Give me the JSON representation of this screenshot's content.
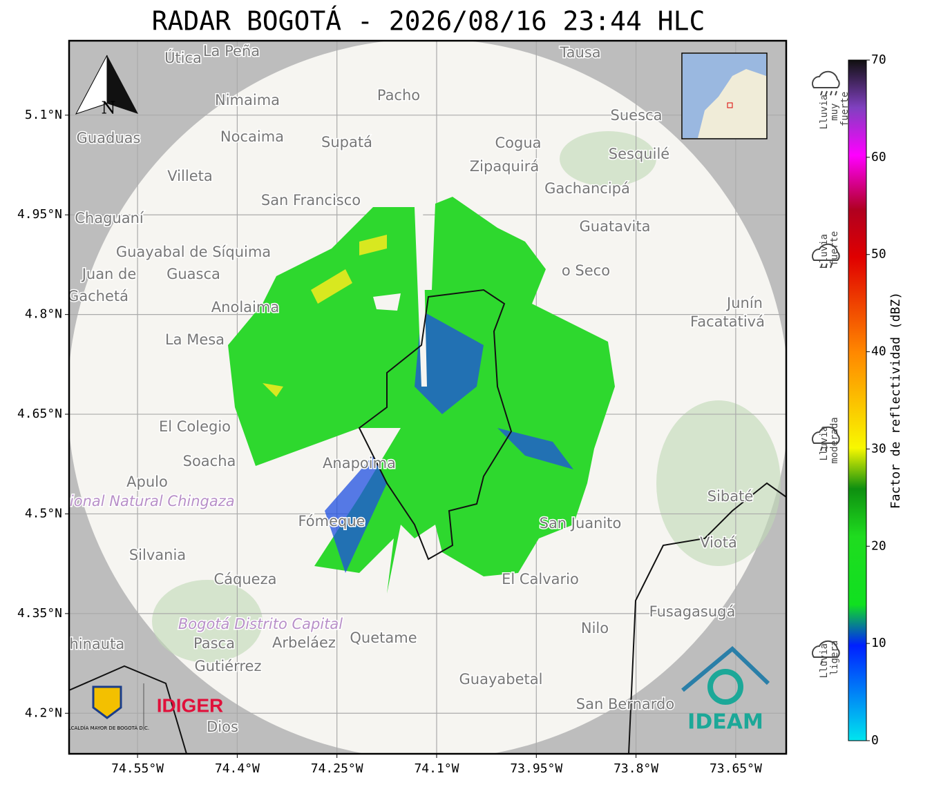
{
  "title": "RADAR BOGOTÁ - 2026/08/16 23:44 HLC",
  "map": {
    "xlim": [
      -74.653,
      -73.574
    ],
    "ylim": [
      4.139,
      5.212
    ],
    "lon_ticks": [
      {
        "value": -74.55,
        "label": "74.55°W"
      },
      {
        "value": -74.4,
        "label": "74.4°W"
      },
      {
        "value": -74.25,
        "label": "74.25°W"
      },
      {
        "value": -74.1,
        "label": "74.1°W"
      },
      {
        "value": -73.95,
        "label": "73.95°W"
      },
      {
        "value": -73.8,
        "label": "73.8°W"
      },
      {
        "value": -73.65,
        "label": "73.65°W"
      }
    ],
    "lat_ticks": [
      {
        "value": 5.1,
        "label": "5.1°N"
      },
      {
        "value": 4.95,
        "label": "4.95°N"
      },
      {
        "value": 4.8,
        "label": "4.8°N"
      },
      {
        "value": 4.65,
        "label": "4.65°N"
      },
      {
        "value": 4.5,
        "label": "4.5°N"
      },
      {
        "value": 4.35,
        "label": "4.35°N"
      },
      {
        "value": 4.2,
        "label": "4.2°N"
      }
    ],
    "north": "N",
    "places": [
      "Útica",
      "La Peña",
      "Tausa",
      "Pacho",
      "Nimaima",
      "Guaduas",
      "Nocaima",
      "Supatá",
      "Cogua",
      "Suesca",
      "Sesquilé",
      "Zipaquirá",
      "Villeta",
      "Gachancipá",
      "San Francisco",
      "Chaguaní",
      "Guatavita",
      "Guayabal de Síquima",
      "Juan de",
      "Guasca",
      "o Seco",
      "Gachetá",
      "Junín",
      "Facatativá",
      "Anolaima",
      "La Mesa",
      "El Colegio",
      "Soacha",
      "Anapoima",
      "Apulo",
      "Parque Nacional Natural Chingaza",
      "Sibaté",
      "Fómeque",
      "San Juanito",
      "Viotá",
      "Silvania",
      "Cáqueza",
      "El Calvario",
      "Fusagasugá",
      "Bogotá Distrito Capital",
      "Quetame",
      "Nilo",
      "Chinauta",
      "Pasca",
      "Arbeláez",
      "Gutiérrez",
      "Guayabetal",
      "San Bernardo",
      "Dios"
    ]
  },
  "colorbar": {
    "label": "Factor de reflectividad (dBZ)",
    "lim": [
      0,
      70
    ],
    "ticks": [
      0,
      10,
      20,
      30,
      40,
      50,
      60,
      70
    ]
  },
  "categories": [
    "Lluvia ligera",
    "Lluvia moderada",
    "Lluvia fuerte",
    "Lluvia muy fuerte"
  ],
  "logos": {
    "alcaldia": "ALCALDÍA MAYOR DE BOGOTÁ D.C.",
    "idiger": "IDIGER",
    "ideam": "IDEAM"
  }
}
